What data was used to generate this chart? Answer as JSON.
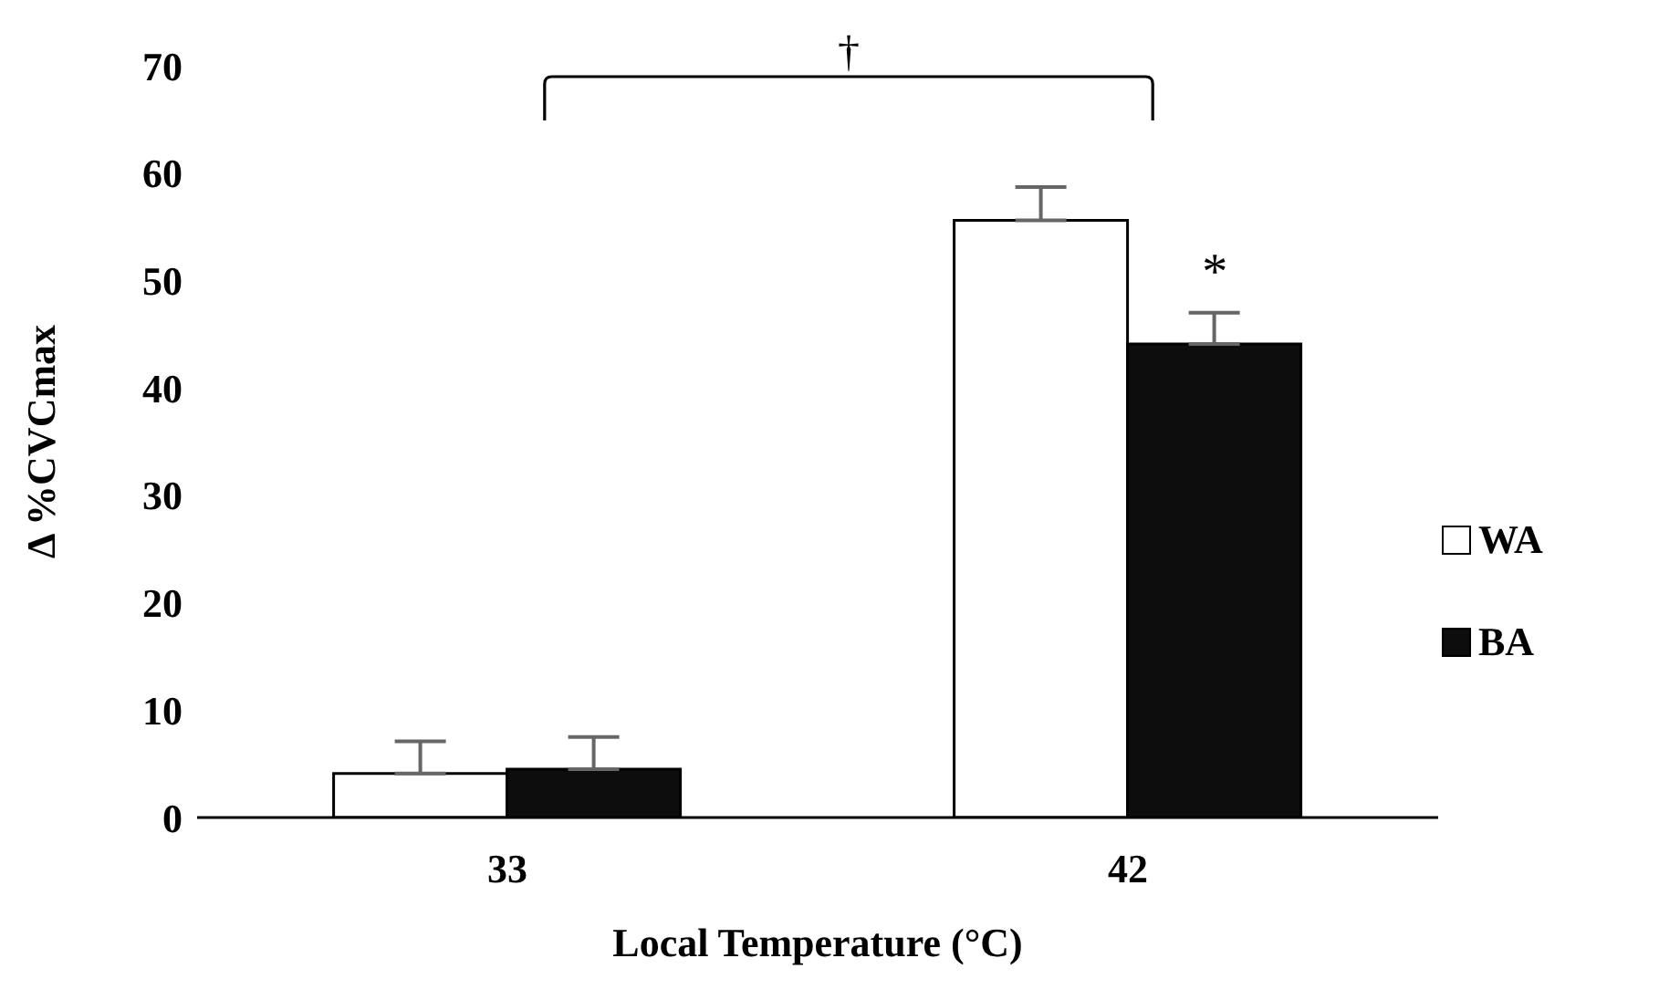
{
  "chart_data": {
    "type": "bar",
    "categories": [
      "33",
      "42"
    ],
    "xlabel": "Local Temperature (°C)",
    "ylabel": "Δ %CVCmax",
    "series": [
      {
        "name": "WA",
        "color": "#ffffff",
        "values": [
          4.1,
          55.6
        ],
        "errors": [
          [
            4.1,
            7.1
          ],
          [
            55.6,
            58.7
          ]
        ]
      },
      {
        "name": "BA",
        "color": "#0d0d0d",
        "values": [
          4.5,
          44.1
        ],
        "errors": [
          [
            4.5,
            7.5
          ],
          [
            44.1,
            47.0
          ]
        ]
      }
    ],
    "ylim": [
      0,
      70
    ],
    "yticks": [
      0,
      10,
      20,
      30,
      40,
      50,
      60,
      70
    ],
    "grid": false,
    "legend": "right",
    "annotations": [
      "†",
      {
        "text": "*",
        "x": "42",
        "y": 51
      }
    ]
  }
}
